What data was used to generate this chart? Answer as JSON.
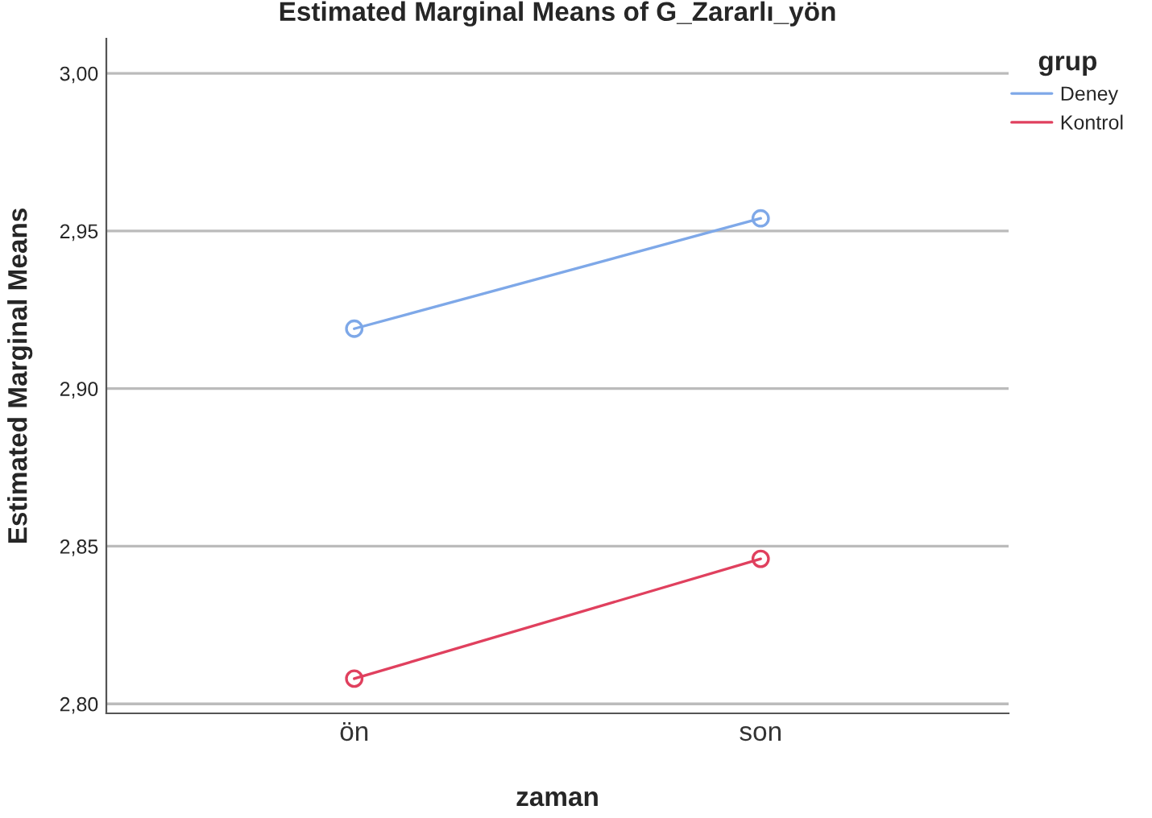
{
  "chart_data": {
    "type": "line",
    "title": "Estimated Marginal Means of G_Zararlı_yön",
    "xlabel": "zaman",
    "ylabel": "Estimated Marginal Means",
    "legend_title": "grup",
    "categories": [
      "ön",
      "son"
    ],
    "series": [
      {
        "name": "Deney",
        "color": "#7ea8e8",
        "values": [
          2.919,
          2.954
        ]
      },
      {
        "name": "Kontrol",
        "color": "#e0405e",
        "values": [
          2.808,
          2.846
        ]
      }
    ],
    "ylim": [
      2.797,
      3.011
    ],
    "yticks": [
      {
        "value": 2.8,
        "label": "2,80"
      },
      {
        "value": 2.85,
        "label": "2,85"
      },
      {
        "value": 2.9,
        "label": "2,90"
      },
      {
        "value": 2.95,
        "label": "2,95"
      },
      {
        "value": 3.0,
        "label": "3,00"
      }
    ],
    "grid": "y",
    "legend": "top right",
    "marker": "circle",
    "line_style": "solid"
  }
}
